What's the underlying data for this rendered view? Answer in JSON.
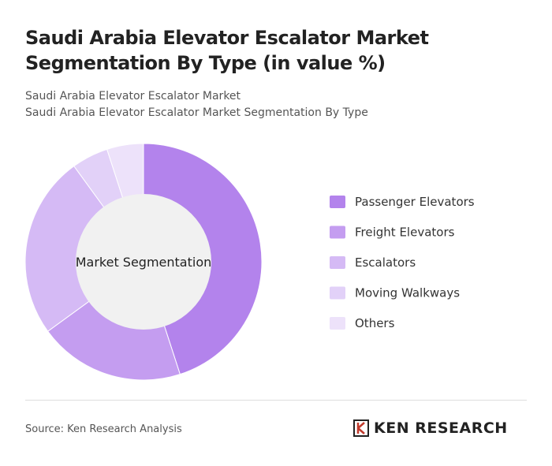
{
  "chart_data": {
    "type": "pie",
    "title": "Saudi Arabia Elevator Escalator Market Segmentation By Type (in value %)",
    "subtitle": [
      "Saudi Arabia Elevator Escalator Market",
      "Saudi Arabia Elevator Escalator Market Segmentation By Type"
    ],
    "center_label": "Market Segmentation",
    "categories": [
      "Passenger Elevators",
      "Freight Elevators",
      "Escalators",
      "Moving Walkways",
      "Others"
    ],
    "values": [
      45,
      20,
      25,
      5,
      5
    ],
    "colors": [
      "#b383ec",
      "#c49df0",
      "#d5baf5",
      "#e2d1f8",
      "#ede2fa"
    ],
    "legend": "right"
  },
  "footer": {
    "source": "Source: Ken Research Analysis",
    "brand": "KEN RESEARCH"
  }
}
